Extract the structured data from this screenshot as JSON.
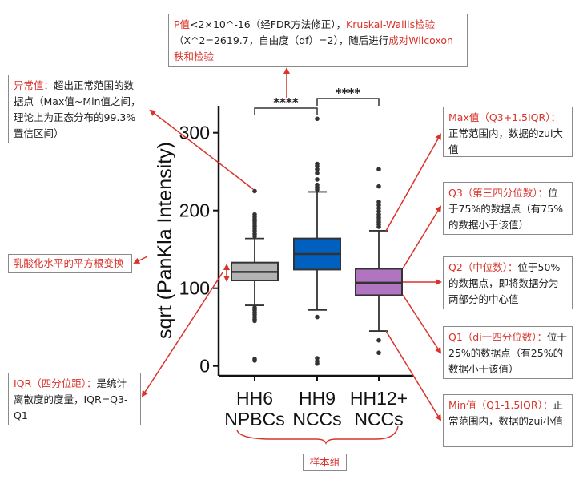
{
  "colors": {
    "accent_red": "#d9332b",
    "hh6": "#b3b3b3",
    "hh9": "#0060c0",
    "hh12": "#b174c0"
  },
  "chart_data": {
    "type": "box",
    "ylabel": "sqrt (PanKla Intensity)",
    "ylim": [
      -8,
      330
    ],
    "yticks": [
      "0",
      "100",
      "200",
      "300"
    ],
    "categories": [
      "HH6\nNPBCs",
      "HH9\nNCCs",
      "HH12+\nNCCs"
    ],
    "category_lines": [
      [
        "HH6",
        "NPBCs"
      ],
      [
        "HH9",
        "NCCs"
      ],
      [
        "HH12+",
        "NCCs"
      ]
    ],
    "series": [
      {
        "color": "#b3b3b3",
        "min": 78,
        "q1": 110,
        "median": 121,
        "q3": 133,
        "max": 164,
        "outliers": [
          225,
          195,
          192,
          189,
          186,
          183,
          180,
          177,
          174,
          170,
          167,
          75,
          72,
          69,
          66,
          63,
          60,
          58,
          9,
          7
        ]
      },
      {
        "color": "#0060c0",
        "min": 72,
        "q1": 124,
        "median": 144,
        "q3": 164,
        "max": 224,
        "outliers": [
          318,
          260,
          257,
          253,
          248,
          240,
          233,
          230,
          227,
          63,
          10,
          6,
          3
        ]
      },
      {
        "color": "#b174c0",
        "min": 45,
        "q1": 91,
        "median": 107,
        "q3": 125,
        "max": 174,
        "outliers": [
          253,
          231,
          211,
          207,
          203,
          199,
          195,
          191,
          188,
          185,
          182,
          179,
          33,
          17
        ]
      }
    ],
    "significance": [
      {
        "pair": [
          "HH6\nNPBCs",
          "HH9\nNCCs"
        ],
        "label": "****"
      },
      {
        "pair": [
          "HH9\nNCCs",
          "HH12+\nNCCs"
        ],
        "label": "****"
      }
    ]
  },
  "annotations": {
    "test": [
      {
        "t": "P值",
        "red": true
      },
      {
        "t": "<2×10^-16（经FDR方法修正），",
        "red": false
      },
      {
        "t": "Kruskal-Wallis检验",
        "red": true
      },
      {
        "t": "（X^2=2619.7，自由度（df）=2），随后进行",
        "red": false
      },
      {
        "t": "成对Wilcoxon秩和检验",
        "red": true
      }
    ],
    "outlier": {
      "head": "异常值：",
      "body": "超出正常范围的数据点（Max值~Min值之间，理论上为正态分布的99.3%置信区间）"
    },
    "sqrt": {
      "head": "乳酸化水平的平方根变换",
      "body": ""
    },
    "iqr": {
      "head": "IQR（四分位距）：",
      "body": "是统计离散度的度量，IQR=Q3-Q1"
    },
    "max": {
      "head": "Max值（Q3+1.5IQR）：",
      "body": "正常范围内，数据的zui大值"
    },
    "q3": {
      "head": "Q3（第三四分位数）：",
      "body": "位于75%的数据点（有75%的数据小于该值）"
    },
    "q2": {
      "head": "Q2（中位数）：",
      "body": "位于50%的数据点，即将数据分为两部分的中心值"
    },
    "q1": {
      "head": "Q1（di一四分位数）：",
      "body": "位于25%的数据点（有25%的数据小于该值）"
    },
    "min": {
      "head": "Min值（Q1-1.5IQR）：",
      "body": "正常范围内，数据的zui小值"
    },
    "group": {
      "head": "样本组",
      "body": ""
    }
  }
}
